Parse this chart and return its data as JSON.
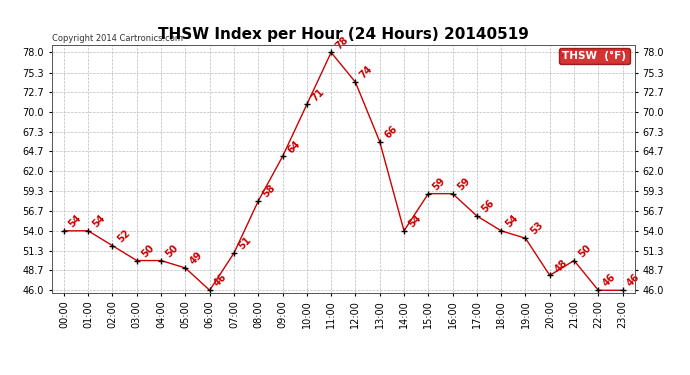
{
  "title": "THSW Index per Hour (24 Hours) 20140519",
  "copyright": "Copyright 2014 Cartronics.com",
  "legend_label": "THSW  (°F)",
  "hours": [
    "00:00",
    "01:00",
    "02:00",
    "03:00",
    "04:00",
    "05:00",
    "06:00",
    "07:00",
    "08:00",
    "09:00",
    "10:00",
    "11:00",
    "12:00",
    "13:00",
    "14:00",
    "15:00",
    "16:00",
    "17:00",
    "18:00",
    "19:00",
    "20:00",
    "21:00",
    "22:00",
    "23:00"
  ],
  "values": [
    54,
    54,
    52,
    50,
    50,
    49,
    46,
    51,
    58,
    64,
    71,
    78,
    74,
    66,
    54,
    59,
    59,
    56,
    54,
    53,
    48,
    50,
    46,
    46
  ],
  "line_color": "#cc0000",
  "marker_color": "#000000",
  "ylim_min": 46.0,
  "ylim_max": 78.0,
  "yticks": [
    46.0,
    48.7,
    51.3,
    54.0,
    56.7,
    59.3,
    62.0,
    64.7,
    67.3,
    70.0,
    72.7,
    75.3,
    78.0
  ],
  "background_color": "#ffffff",
  "grid_color": "#bbbbbb",
  "title_fontsize": 11,
  "label_fontsize": 7,
  "annotation_fontsize": 7,
  "legend_bg": "#cc0000",
  "legend_text_color": "#ffffff"
}
